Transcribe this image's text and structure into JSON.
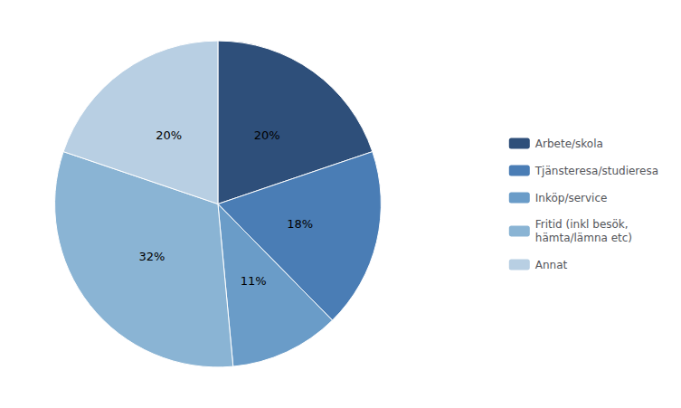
{
  "chart_data": {
    "type": "pie",
    "categories": [
      "Arbete/skola",
      "Tjänsteresa/studieresa",
      "Inköp/service",
      "Fritid (inkl besök,\nhämta/lämna etc)",
      "Annat"
    ],
    "values": [
      20,
      18,
      11,
      32,
      20
    ],
    "value_labels": [
      "20%",
      "18%",
      "11%",
      "32%",
      "20%"
    ],
    "colors": [
      "#2e4f7a",
      "#4a7db5",
      "#6a9cc8",
      "#8ab4d4",
      "#b8cfe3"
    ],
    "data_labels": true,
    "legend": "right"
  }
}
